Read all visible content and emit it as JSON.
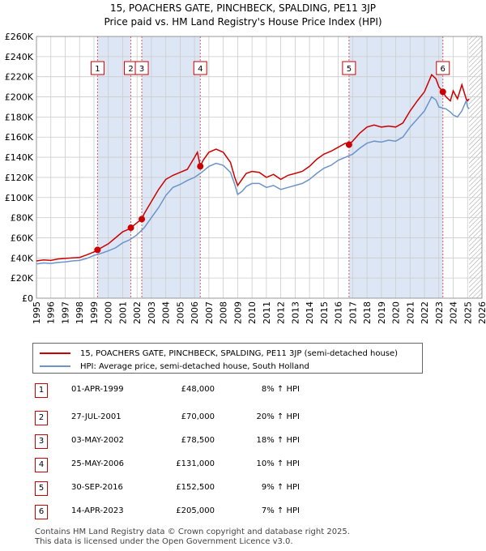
{
  "title_line1": "15, POACHERS GATE, PINCHBECK, SPALDING, PE11 3JP",
  "title_line2": "Price paid vs. HM Land Registry's House Price Index (HPI)",
  "colors": {
    "price": "#cc0000",
    "hpi": "#6b94c9",
    "shade": "#dce6f5",
    "grid": "#cccccc",
    "vline": "#d06060"
  },
  "chart_data": {
    "type": "line",
    "xlim": [
      1995,
      2026
    ],
    "ylim": [
      0,
      260000
    ],
    "x_ticks": [
      "1995",
      "1996",
      "1997",
      "1998",
      "1999",
      "2000",
      "2001",
      "2002",
      "2003",
      "2004",
      "2005",
      "2006",
      "2007",
      "2008",
      "2009",
      "2010",
      "2011",
      "2012",
      "2013",
      "2014",
      "2015",
      "2016",
      "2017",
      "2018",
      "2019",
      "2020",
      "2021",
      "2022",
      "2023",
      "2024",
      "2025",
      "2026"
    ],
    "y_ticks": [
      "£0",
      "£20K",
      "£40K",
      "£60K",
      "£80K",
      "£100K",
      "£120K",
      "£140K",
      "£160K",
      "£180K",
      "£200K",
      "£220K",
      "£240K",
      "£260K"
    ],
    "shaded_ranges": [
      [
        1999.25,
        2001.57
      ],
      [
        2002.33,
        2006.4
      ],
      [
        2016.75,
        2023.28
      ]
    ],
    "future_hatch_from": 2025.1,
    "series": [
      {
        "name": "15, POACHERS GATE, PINCHBECK, SPALDING, PE11 3JP (semi-detached house)",
        "color": "#cc0000",
        "x": [
          1995,
          1995.5,
          1996,
          1996.5,
          1997,
          1997.5,
          1998,
          1998.5,
          1999,
          1999.25,
          1999.5,
          2000,
          2000.5,
          2001,
          2001.5,
          2001.57,
          2002,
          2002.33,
          2002.5,
          2003,
          2003.5,
          2004,
          2004.5,
          2005,
          2005.5,
          2006,
          2006.2,
          2006.4,
          2006.6,
          2007,
          2007.5,
          2008,
          2008.5,
          2008.8,
          2009,
          2009.3,
          2009.6,
          2010,
          2010.5,
          2011,
          2011.5,
          2012,
          2012.5,
          2013,
          2013.5,
          2014,
          2014.5,
          2015,
          2015.5,
          2016,
          2016.5,
          2016.75,
          2017,
          2017.5,
          2018,
          2018.5,
          2019,
          2019.5,
          2020,
          2020.5,
          2021,
          2021.5,
          2022,
          2022.5,
          2022.8,
          2023,
          2023.28,
          2023.5,
          2023.8,
          2024,
          2024.3,
          2024.6,
          2024.9,
          2025,
          2025.1
        ],
        "values": [
          37000,
          38000,
          37500,
          39000,
          39500,
          40000,
          40500,
          43000,
          46000,
          48000,
          50000,
          54000,
          60000,
          66000,
          69000,
          70000,
          75000,
          78500,
          84000,
          96000,
          108000,
          118000,
          122000,
          125000,
          128000,
          140000,
          145000,
          131000,
          137000,
          145000,
          148000,
          145000,
          135000,
          120000,
          112000,
          118000,
          124000,
          126000,
          125000,
          120000,
          123000,
          118000,
          122000,
          124000,
          126000,
          131000,
          138000,
          143000,
          146000,
          150000,
          154000,
          152500,
          156000,
          164000,
          170000,
          172000,
          170000,
          171000,
          170000,
          174000,
          186000,
          196000,
          205000,
          222000,
          218000,
          210000,
          205000,
          200000,
          196000,
          206000,
          198000,
          212000,
          198000,
          196000,
          198000
        ]
      },
      {
        "name": "HPI: Average price, semi-detached house, South Holland",
        "color": "#6b94c9",
        "x": [
          1995,
          1995.5,
          1996,
          1996.5,
          1997,
          1997.5,
          1998,
          1998.5,
          1999,
          1999.5,
          2000,
          2000.5,
          2001,
          2001.5,
          2002,
          2002.5,
          2003,
          2003.5,
          2004,
          2004.5,
          2005,
          2005.5,
          2006,
          2006.5,
          2007,
          2007.5,
          2008,
          2008.5,
          2008.8,
          2009,
          2009.3,
          2009.6,
          2010,
          2010.5,
          2011,
          2011.5,
          2012,
          2012.5,
          2013,
          2013.5,
          2014,
          2014.5,
          2015,
          2015.5,
          2016,
          2016.5,
          2017,
          2017.5,
          2018,
          2018.5,
          2019,
          2019.5,
          2020,
          2020.5,
          2021,
          2021.5,
          2022,
          2022.5,
          2022.8,
          2023,
          2023.5,
          2023.8,
          2024,
          2024.3,
          2024.6,
          2024.9,
          2025,
          2025.1
        ],
        "values": [
          34000,
          35000,
          34500,
          35500,
          36000,
          37000,
          37500,
          39500,
          42500,
          44500,
          47000,
          50000,
          55000,
          58000,
          63000,
          70000,
          80000,
          90000,
          102000,
          110000,
          113000,
          117000,
          120000,
          125000,
          131000,
          134000,
          132000,
          125000,
          113000,
          103000,
          106000,
          111000,
          114000,
          114000,
          110000,
          112000,
          108000,
          110000,
          112000,
          114000,
          118000,
          124000,
          129000,
          132000,
          137000,
          140000,
          143000,
          149000,
          154000,
          156000,
          155000,
          157000,
          156000,
          160000,
          170000,
          178000,
          186000,
          200000,
          197000,
          190000,
          188000,
          185000,
          182000,
          180000,
          186000,
          196000,
          190000,
          188000
        ]
      }
    ],
    "transactions": [
      {
        "label": "1",
        "date": "01-APR-1999",
        "x": 1999.25,
        "price_num": 48000,
        "price": "£48,000",
        "hpi": "8% ↑ HPI"
      },
      {
        "label": "2",
        "date": "27-JUL-2001",
        "x": 2001.57,
        "price_num": 70000,
        "price": "£70,000",
        "hpi": "20% ↑ HPI"
      },
      {
        "label": "3",
        "date": "03-MAY-2002",
        "x": 2002.33,
        "price_num": 78500,
        "price": "£78,500",
        "hpi": "18% ↑ HPI"
      },
      {
        "label": "4",
        "date": "25-MAY-2006",
        "x": 2006.4,
        "price_num": 131000,
        "price": "£131,000",
        "hpi": "10% ↑ HPI"
      },
      {
        "label": "5",
        "date": "30-SEP-2016",
        "x": 2016.75,
        "price_num": 152500,
        "price": "£152,500",
        "hpi": "9% ↑ HPI"
      },
      {
        "label": "6",
        "date": "14-APR-2023",
        "x": 2023.28,
        "price_num": 205000,
        "price": "£205,000",
        "hpi": "7% ↑ HPI"
      }
    ]
  },
  "legend": {
    "price_label": "15, POACHERS GATE, PINCHBECK, SPALDING, PE11 3JP (semi-detached house)",
    "hpi_label": "HPI: Average price, semi-detached house, South Holland"
  },
  "footer": {
    "line1": "Contains HM Land Registry data © Crown copyright and database right 2025.",
    "line2": "This data is licensed under the Open Government Licence v3.0."
  }
}
